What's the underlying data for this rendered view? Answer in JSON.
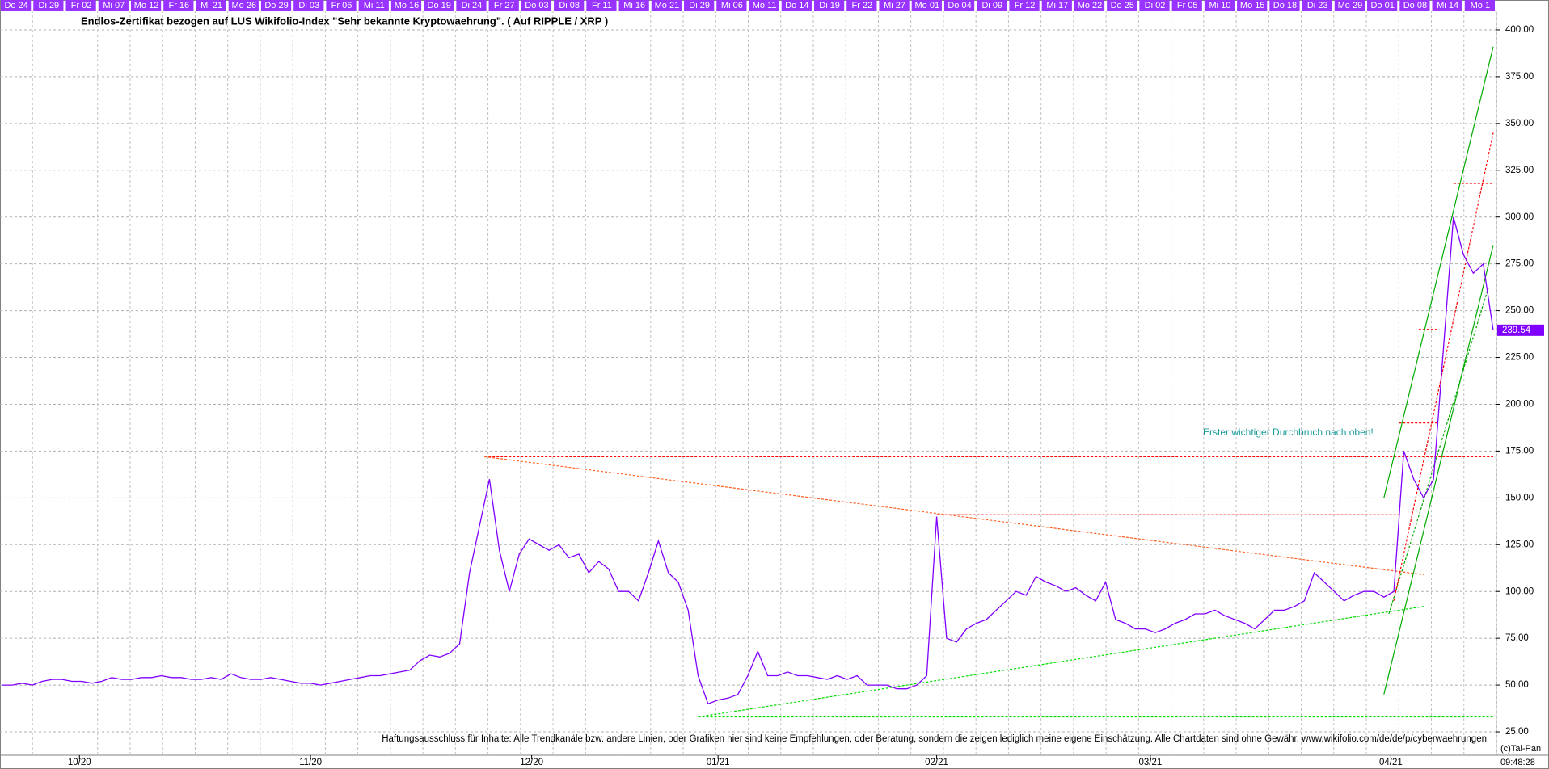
{
  "chart_data": {
    "type": "line",
    "title": "Endlos-Zertifikat bezogen auf LUS Wikifolio-Index \"Sehr bekannte Kryptowaehrung\". ( Auf RIPPLE / XRP )",
    "annotation": "Erster wichtiger Durchbruch nach oben!",
    "disclaimer": "Haftungsausschluss für Inhalte: Alle Trendkanäle bzw. andere Linien, oder Grafiken hier sind keine Empfehlungen, oder Beratung, sondern die zeigen lediglich meine eigene Einschätzung. Alle Chartdaten sind ohne Gewähr.  www.wikifolio.com/de/de/p/cyberwaehrungen",
    "copyright": "(c)Tai-Pan",
    "time": "09:48:28",
    "color": "#8000ff",
    "grid": true,
    "top_dates": [
      "Do 24",
      "Di 29",
      "Fr 02",
      "Mi 07",
      "Mo 12",
      "Fr 16",
      "Mi 21",
      "Mo 26",
      "Do 29",
      "Di 03",
      "Fr 06",
      "Mi 11",
      "Mo 16",
      "Do 19",
      "Di 24",
      "Fr 27",
      "Do 03",
      "Di 08",
      "Fr 11",
      "Mi 16",
      "Mo 21",
      "Di 29",
      "Mi 06",
      "Mo 11",
      "Do 14",
      "Di 19",
      "Fr 22",
      "Mi 27",
      "Mo 01",
      "Do 04",
      "Di 09",
      "Fr 12",
      "Mi 17",
      "Mo 22",
      "Do 25",
      "Di 02",
      "Fr 05",
      "Mi 10",
      "Mo 15",
      "Do 18",
      "Di 23",
      "Mo 29",
      "Do 01",
      "Do 08",
      "Mi 14",
      "Mo 1"
    ],
    "values": [
      50,
      50,
      51,
      50,
      52,
      53,
      53,
      52,
      52,
      51,
      52,
      54,
      53,
      53,
      54,
      54,
      55,
      54,
      54,
      53,
      53,
      54,
      53,
      56,
      54,
      53,
      53,
      54,
      53,
      52,
      51,
      51,
      50,
      51,
      52,
      53,
      54,
      55,
      55,
      56,
      57,
      58,
      63,
      66,
      65,
      67,
      72,
      110,
      135,
      160,
      122,
      100,
      120,
      128,
      125,
      122,
      125,
      118,
      120,
      110,
      116,
      112,
      100,
      100,
      95,
      110,
      127,
      110,
      105,
      90,
      55,
      40,
      42,
      43,
      45,
      55,
      68,
      55,
      55,
      57,
      55,
      55,
      54,
      53,
      55,
      53,
      55,
      50,
      50,
      50,
      48,
      48,
      50,
      55,
      140,
      75,
      73,
      80,
      83,
      85,
      90,
      95,
      100,
      98,
      108,
      105,
      103,
      100,
      102,
      98,
      95,
      105,
      85,
      83,
      80,
      80,
      78,
      80,
      83,
      85,
      88,
      88,
      90,
      87,
      85,
      83,
      80,
      85,
      90,
      90,
      92,
      95,
      110,
      105,
      100,
      95,
      98,
      100,
      100,
      97,
      100,
      175,
      160,
      150,
      160,
      230,
      300,
      280,
      270,
      275,
      239.54
    ],
    "xlim": [
      0,
      150
    ],
    "xticks": [
      {
        "value": 7.75,
        "label": "10/20"
      },
      {
        "value": 31,
        "label": "11/20"
      },
      {
        "value": 53.25,
        "label": "12/20"
      },
      {
        "value": 72,
        "label": "01/21"
      },
      {
        "value": 94,
        "label": "02/21"
      },
      {
        "value": 115.5,
        "label": "03/21"
      },
      {
        "value": 139.7,
        "label": "04/21"
      }
    ],
    "ylim": [
      12.5,
      412.5
    ],
    "yticks": [
      {
        "value": 25,
        "label": "25.00"
      },
      {
        "value": 50,
        "label": "50.00"
      },
      {
        "value": 75,
        "label": "75.00"
      },
      {
        "value": 100,
        "label": "100.00"
      },
      {
        "value": 125,
        "label": "125.00"
      },
      {
        "value": 150,
        "label": "150.00"
      },
      {
        "value": 175,
        "label": "175.00"
      },
      {
        "value": 200,
        "label": "200.00"
      },
      {
        "value": 225,
        "label": "225.00"
      },
      {
        "value": 250,
        "label": "250.00"
      },
      {
        "value": 275,
        "label": "275.00"
      },
      {
        "value": 300,
        "label": "300.00"
      },
      {
        "value": 325,
        "label": "325.00"
      },
      {
        "value": 350,
        "label": "350.00"
      },
      {
        "value": 375,
        "label": "375.00"
      },
      {
        "value": 400,
        "label": "400.00"
      }
    ],
    "trendlines": [
      {
        "color": "#ff0000",
        "style": "dashed",
        "x": [
          48.5,
          150
        ],
        "y": [
          172,
          172
        ]
      },
      {
        "color": "#ff0000",
        "style": "dashed",
        "x": [
          94,
          140.5
        ],
        "y": [
          141,
          141
        ]
      },
      {
        "color": "#ff0000",
        "style": "dashed",
        "x": [
          140.5,
          144.5
        ],
        "y": [
          190,
          190
        ]
      },
      {
        "color": "#ff0000",
        "style": "dashed",
        "x": [
          142.5,
          144.5
        ],
        "y": [
          240,
          240
        ]
      },
      {
        "color": "#ff0000",
        "style": "dashed",
        "x": [
          146,
          150
        ],
        "y": [
          318,
          318
        ]
      },
      {
        "color": "#ff6020",
        "style": "dashed",
        "x": [
          48.5,
          143
        ],
        "y": [
          172,
          109
        ]
      },
      {
        "color": "#00dd00",
        "style": "dashed",
        "x": [
          70,
          143
        ],
        "y": [
          33,
          92
        ]
      },
      {
        "color": "#00dd00",
        "style": "dashed",
        "x": [
          70,
          150
        ],
        "y": [
          33,
          33
        ]
      },
      {
        "color": "#00aa00",
        "style": "solid",
        "x": [
          139,
          150
        ],
        "y": [
          150,
          391
        ]
      },
      {
        "color": "#00aa00",
        "style": "solid",
        "x": [
          139,
          150
        ],
        "y": [
          45,
          285
        ]
      },
      {
        "color": "#00aa00",
        "style": "dashed",
        "x": [
          139.5,
          149.5
        ],
        "y": [
          88,
          262
        ]
      },
      {
        "color": "#ff0000",
        "style": "dashed",
        "x": [
          140,
          150
        ],
        "y": [
          95,
          345
        ]
      }
    ]
  }
}
